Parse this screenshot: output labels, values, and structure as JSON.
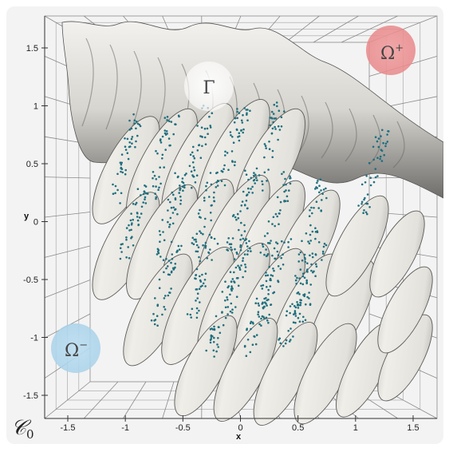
{
  "corner_label": "𝒞",
  "corner_sub": "0",
  "axes": {
    "x": {
      "label": "x",
      "ticks": [
        "-1.5",
        "-1",
        "-0.5",
        "0",
        "0.5",
        "1",
        "1.5"
      ]
    },
    "y": {
      "label": "y",
      "ticks": [
        "1.5",
        "1",
        "0.5",
        "0",
        "-0.5",
        "-1",
        "-1.5"
      ]
    }
  },
  "regions": {
    "omega_plus": {
      "base": "Ω",
      "sup": "+",
      "color": "#e9888a"
    },
    "gamma": {
      "label": "Γ",
      "color": "#ffffff"
    },
    "omega_minus": {
      "base": "Ω",
      "sup": "−",
      "color": "#a9d2ea"
    }
  },
  "colors": {
    "surface": "#e6e4de",
    "surface_shadow": "#3f3f3f",
    "points": "#1f6f7e",
    "grid": "#8a8a8a"
  }
}
